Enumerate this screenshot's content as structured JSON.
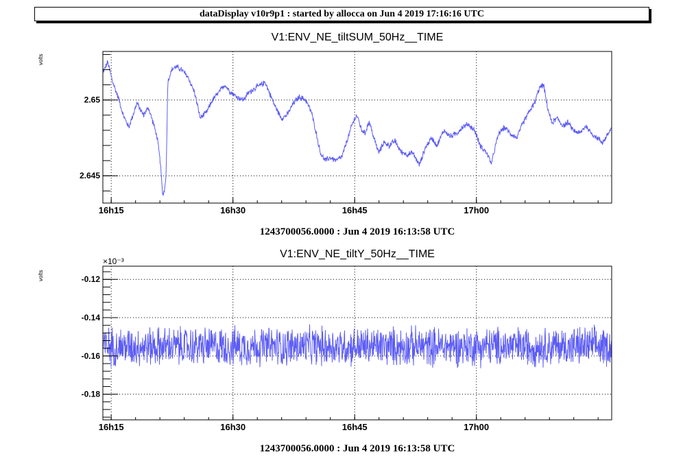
{
  "banner": "dataDisplay v10r9p1 : started by allocca on Jun  4 2019 17:16:16 UTC",
  "colors": {
    "trace": "#5c5cf5",
    "grid": "#000000",
    "frame": "#000000"
  },
  "chart_data": [
    {
      "type": "line",
      "title": "V1:ENV_NE_tiltSUM_50Hz__TIME",
      "ylabel": "volts",
      "xlabel": "1243700056.0000 : Jun  4 2019 16:13:58 UTC",
      "x_unit": "minutes after 16:13:58 UTC",
      "xlim": [
        0,
        62.7
      ],
      "ylim": [
        2.6432,
        2.6532
      ],
      "x_ticks": [
        {
          "x": 1.03,
          "label": "16h15"
        },
        {
          "x": 16.03,
          "label": "16h30"
        },
        {
          "x": 31.03,
          "label": "16h45"
        },
        {
          "x": 46.03,
          "label": "17h00"
        }
      ],
      "y_ticks": [
        {
          "y": 2.645,
          "label": "2.645"
        },
        {
          "y": 2.65,
          "label": "2.65"
        }
      ],
      "grid": true,
      "exponent_label": "",
      "series": [
        {
          "noise": 0.00022,
          "x": [
            0,
            0.6,
            1.2,
            2.0,
            2.5,
            3.2,
            4.2,
            5.0,
            5.6,
            6.2,
            6.7,
            7.1,
            7.35,
            7.6,
            7.8,
            8.0,
            8.5,
            9.0,
            9.7,
            10.5,
            11.3,
            12.0,
            12.8,
            13.5,
            14.3,
            15.0,
            15.8,
            16.5,
            17.3,
            18.0,
            18.8,
            19.5,
            20.0,
            20.5,
            21.3,
            22.0,
            22.7,
            23.5,
            24.2,
            25.0,
            25.7,
            26.3,
            26.8,
            27.4,
            28.0,
            28.8,
            29.5,
            30.2,
            30.8,
            31.3,
            31.9,
            32.3,
            32.8,
            33.4,
            34.0,
            34.6,
            35.3,
            36.0,
            36.7,
            37.5,
            38.2,
            39.0,
            39.7,
            40.5,
            41.2,
            42.0,
            42.8,
            43.6,
            44.3,
            45.0,
            45.8,
            46.5,
            47.3,
            47.9,
            48.3,
            48.8,
            49.5,
            50.2,
            51.0,
            51.8,
            52.5,
            53.2,
            53.8,
            54.3,
            54.8,
            55.3,
            56.0,
            56.7,
            57.3,
            58.0,
            58.8,
            59.5,
            60.2,
            60.9,
            61.6,
            62.3,
            62.7
          ],
          "y": [
            2.6518,
            2.6525,
            2.6512,
            2.65,
            2.649,
            2.6482,
            2.6498,
            2.649,
            2.6495,
            2.6485,
            2.6475,
            2.6458,
            2.6438,
            2.644,
            2.6452,
            2.6512,
            2.652,
            2.6522,
            2.652,
            2.6515,
            2.6505,
            2.6488,
            2.6492,
            2.65,
            2.6505,
            2.651,
            2.6505,
            2.6502,
            2.65,
            2.6505,
            2.6508,
            2.651,
            2.6512,
            2.6505,
            2.6495,
            2.6488,
            2.649,
            2.6498,
            2.6502,
            2.65,
            2.6492,
            2.6478,
            2.6465,
            2.646,
            2.6462,
            2.646,
            2.6463,
            2.6475,
            2.6485,
            2.649,
            2.648,
            2.6478,
            2.6486,
            2.6475,
            2.6465,
            2.6472,
            2.647,
            2.6473,
            2.6466,
            2.6464,
            2.6465,
            2.6457,
            2.6468,
            2.6475,
            2.647,
            2.648,
            2.6476,
            2.6478,
            2.6482,
            2.6484,
            2.648,
            2.647,
            2.6465,
            2.6458,
            2.6468,
            2.6478,
            2.6482,
            2.6478,
            2.6475,
            2.6485,
            2.6492,
            2.6498,
            2.6508,
            2.651,
            2.6495,
            2.6485,
            2.6488,
            2.6483,
            2.6485,
            2.648,
            2.6478,
            2.6483,
            2.6478,
            2.6475,
            2.6472,
            2.6478,
            2.6482
          ]
        }
      ]
    },
    {
      "type": "line",
      "title": "V1:ENV_NE_tiltY_50Hz__TIME",
      "ylabel": "volts",
      "xlabel": "1243700056.0000 : Jun  4 2019 16:13:58 UTC",
      "x_unit": "minutes after 16:13:58 UTC",
      "xlim": [
        0,
        62.7
      ],
      "ylim": [
        -0.1934,
        -0.1131
      ],
      "x_ticks": [
        {
          "x": 1.03,
          "label": "16h15"
        },
        {
          "x": 16.03,
          "label": "16h30"
        },
        {
          "x": 31.03,
          "label": "16h45"
        },
        {
          "x": 46.03,
          "label": "17h00"
        }
      ],
      "y_ticks": [
        {
          "y": -0.12,
          "label": "-0.12"
        },
        {
          "y": -0.14,
          "label": "-0.14"
        },
        {
          "y": -0.16,
          "label": "-0.16"
        },
        {
          "y": -0.18,
          "label": "-0.18"
        }
      ],
      "grid": true,
      "exponent_label": "×10⁻³",
      "series": [
        {
          "noise": 0.012,
          "x": [
            0,
            62.7
          ],
          "y": [
            -0.155,
            -0.155
          ]
        }
      ]
    }
  ]
}
